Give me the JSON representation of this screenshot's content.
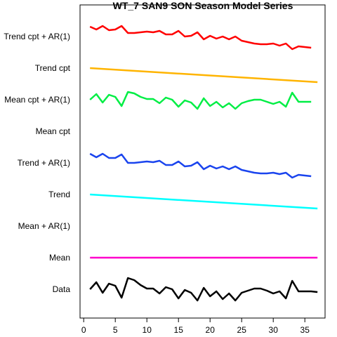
{
  "chart_data": {
    "type": "line",
    "title": "WT_7 SAN9 SON Season Model Series",
    "xlim": [
      0,
      37
    ],
    "x_ticks": [
      0,
      5,
      10,
      15,
      20,
      25,
      30,
      35
    ],
    "row_labels": [
      "Data",
      "Mean",
      "Mean + AR(1)",
      "Trend",
      "Trend + AR(1)",
      "Mean cpt",
      "Mean cpt + AR(1)",
      "Trend cpt",
      "Trend cpt + AR(1)"
    ],
    "grid": false,
    "legend": "none",
    "series": [
      {
        "name": "Data",
        "color": "#000000",
        "x": [
          1,
          2,
          3,
          4,
          5,
          6,
          7,
          8,
          9,
          10,
          11,
          12,
          13,
          14,
          15,
          16,
          17,
          18,
          19,
          20,
          21,
          22,
          23,
          24,
          25,
          26,
          27,
          28,
          29,
          30,
          31,
          32,
          33,
          34,
          35,
          36,
          37
        ],
        "values": [
          0.0,
          1.0,
          -0.5,
          0.8,
          0.5,
          -1.2,
          1.6,
          1.3,
          0.6,
          0.1,
          0.1,
          -0.6,
          0.3,
          0.0,
          -1.3,
          -0.1,
          -0.5,
          -1.6,
          0.2,
          -1.0,
          -0.3,
          -1.4,
          -0.6,
          -1.6,
          -0.5,
          -0.2,
          0.1,
          0.1,
          -0.2,
          -0.6,
          -0.3,
          -1.3,
          1.2,
          -0.3,
          -0.3,
          -0.3,
          -0.4
        ]
      },
      {
        "name": "Mean",
        "color": "#ff00cc",
        "x": [
          1,
          37
        ],
        "values": [
          0.0,
          0.0
        ]
      },
      {
        "name": "Trend + AR(1)",
        "color": "#1a44ee",
        "x": [
          1,
          2,
          3,
          4,
          5,
          6,
          7,
          8,
          9,
          10,
          11,
          12,
          13,
          14,
          15,
          16,
          17,
          18,
          19,
          20,
          21,
          22,
          23,
          24,
          25,
          26,
          27,
          28,
          29,
          30,
          31,
          32,
          33,
          34,
          35,
          36
        ],
        "values": [
          1.3,
          0.8,
          1.3,
          0.7,
          0.7,
          1.2,
          0.0,
          0.0,
          0.1,
          0.2,
          0.1,
          0.3,
          -0.3,
          -0.3,
          0.2,
          -0.5,
          -0.4,
          0.1,
          -0.9,
          -0.4,
          -0.8,
          -0.5,
          -0.9,
          -0.5,
          -1.0,
          -1.2,
          -1.4,
          -1.5,
          -1.5,
          -1.4,
          -1.6,
          -1.4,
          -2.1,
          -1.7,
          -1.8,
          -1.9
        ]
      },
      {
        "name": "Trend",
        "color": "#00ffff",
        "x": [
          1,
          37
        ],
        "values": [
          0.0,
          -2.0
        ]
      },
      {
        "name": "Mean cpt + AR(1)",
        "color": "#00ee44",
        "x": [
          1,
          2,
          3,
          4,
          5,
          6,
          7,
          8,
          9,
          10,
          11,
          12,
          13,
          14,
          15,
          16,
          17,
          18,
          19,
          20,
          21,
          22,
          23,
          24,
          25,
          26,
          27,
          28,
          29,
          30,
          31,
          32,
          33,
          34,
          35,
          36
        ],
        "values": [
          0.0,
          0.8,
          -0.4,
          0.7,
          0.4,
          -0.9,
          1.1,
          0.9,
          0.4,
          0.1,
          0.1,
          -0.5,
          0.3,
          0.0,
          -1.0,
          -0.1,
          -0.4,
          -1.3,
          0.2,
          -0.9,
          -0.3,
          -1.1,
          -0.5,
          -1.3,
          -0.5,
          -0.2,
          0.0,
          0.0,
          -0.3,
          -0.6,
          -0.3,
          -1.0,
          1.0,
          -0.3,
          -0.3,
          -0.3
        ]
      },
      {
        "name": "Trend cpt",
        "color": "#ffb400",
        "x": [
          1,
          37
        ],
        "values": [
          0.0,
          -2.0
        ]
      },
      {
        "name": "Trend cpt + AR(1)",
        "color": "#ff0000",
        "x": [
          1,
          2,
          3,
          4,
          5,
          6,
          7,
          8,
          9,
          10,
          11,
          12,
          13,
          14,
          15,
          16,
          17,
          18,
          19,
          20,
          21,
          22,
          23,
          24,
          25,
          26,
          27,
          28,
          29,
          30,
          31,
          32,
          33,
          34,
          35,
          36
        ],
        "values": [
          1.4,
          1.0,
          1.5,
          0.9,
          1.0,
          1.5,
          0.5,
          0.5,
          0.6,
          0.7,
          0.6,
          0.8,
          0.3,
          0.3,
          0.8,
          0.0,
          0.1,
          0.6,
          -0.4,
          0.1,
          -0.3,
          0.0,
          -0.4,
          0.0,
          -0.6,
          -0.8,
          -1.0,
          -1.1,
          -1.1,
          -1.0,
          -1.3,
          -1.0,
          -1.8,
          -1.4,
          -1.5,
          -1.6
        ]
      }
    ]
  }
}
